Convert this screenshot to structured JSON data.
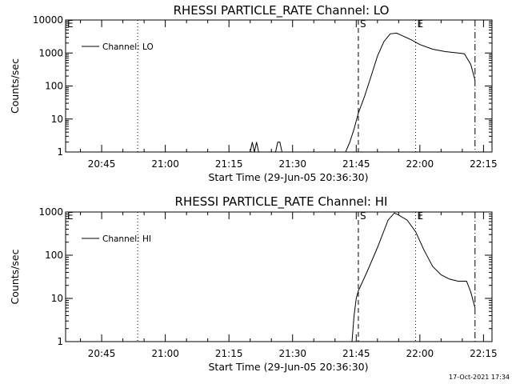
{
  "stamp": "17-Oct-2021 17:34",
  "chart_data": [
    {
      "type": "line",
      "title": "RHESSI PARTICLE_RATE Channel: LO",
      "xlabel": "Start Time (29-Jun-05 20:36:30)",
      "ylabel": "Counts/sec",
      "yscale": "log",
      "ylim": [
        1,
        10000
      ],
      "xlim": [
        "20:36:30",
        "22:17:00"
      ],
      "y_ticks": [
        "1",
        "10",
        "100",
        "1000",
        "10000"
      ],
      "x_ticks": [
        "20:45",
        "21:00",
        "21:15",
        "21:30",
        "21:45",
        "22:00",
        "22:15"
      ],
      "legend": {
        "position": "top-left",
        "label": "Channel: LO"
      },
      "markers": [
        {
          "time": "20:36:30",
          "label": "E",
          "style": "dotted"
        },
        {
          "time": "20:53:30",
          "label": "",
          "style": "dotted"
        },
        {
          "time": "21:45:30",
          "label": "S",
          "style": "dashed"
        },
        {
          "time": "21:59:00",
          "label": "E",
          "style": "dotted"
        },
        {
          "time": "22:13:00",
          "label": "",
          "style": "dash-dot"
        }
      ],
      "series": [
        {
          "name": "Channel: LO",
          "x": [
            "21:20:00",
            "21:20:30",
            "21:21:00",
            "21:21:30",
            "21:22:00",
            "21:26:00",
            "21:26:30",
            "21:27:00",
            "21:27:30",
            "21:28:00",
            "21:42:30",
            "21:43:30",
            "21:44:30",
            "21:45:30",
            "21:47:00",
            "21:48:30",
            "21:50:00",
            "21:51:30",
            "21:53:00",
            "21:54:30",
            "21:56:00",
            "21:58:00",
            "22:00:00",
            "22:03:00",
            "22:06:00",
            "22:09:00",
            "22:10:30",
            "22:12:00",
            "22:13:00"
          ],
          "y": [
            1,
            2,
            1,
            2,
            1,
            1,
            2,
            2,
            1,
            1,
            1,
            2,
            5,
            15,
            50,
            200,
            800,
            2200,
            3800,
            4000,
            3300,
            2500,
            1800,
            1300,
            1100,
            1000,
            950,
            450,
            150
          ]
        }
      ]
    },
    {
      "type": "line",
      "title": "RHESSI PARTICLE_RATE Channel: HI",
      "xlabel": "Start Time (29-Jun-05 20:36:30)",
      "ylabel": "Counts/sec",
      "yscale": "log",
      "ylim": [
        1,
        1000
      ],
      "xlim": [
        "20:36:30",
        "22:17:00"
      ],
      "y_ticks": [
        "1",
        "10",
        "100",
        "1000"
      ],
      "x_ticks": [
        "20:45",
        "21:00",
        "21:15",
        "21:30",
        "21:45",
        "22:00",
        "22:15"
      ],
      "legend": {
        "position": "top-left",
        "label": "Channel: HI"
      },
      "markers": [
        {
          "time": "20:36:30",
          "label": "E",
          "style": "dotted"
        },
        {
          "time": "20:53:30",
          "label": "",
          "style": "dotted"
        },
        {
          "time": "21:45:30",
          "label": "S",
          "style": "dashed"
        },
        {
          "time": "21:59:00",
          "label": "E",
          "style": "dotted"
        },
        {
          "time": "22:13:00",
          "label": "",
          "style": "dash-dot"
        }
      ],
      "series": [
        {
          "name": "Channel: HI",
          "x": [
            "21:44:00",
            "21:44:30",
            "21:45:00",
            "21:45:30",
            "21:47:30",
            "21:50:00",
            "21:52:30",
            "21:54:00",
            "21:55:00",
            "21:57:00",
            "21:59:00",
            "22:01:00",
            "22:03:00",
            "22:05:00",
            "22:07:00",
            "22:09:00",
            "22:11:00",
            "22:12:00",
            "22:13:00"
          ],
          "y": [
            1,
            4,
            10,
            15,
            40,
            150,
            650,
            950,
            850,
            650,
            350,
            130,
            55,
            35,
            28,
            25,
            25,
            14,
            6
          ]
        }
      ]
    }
  ]
}
